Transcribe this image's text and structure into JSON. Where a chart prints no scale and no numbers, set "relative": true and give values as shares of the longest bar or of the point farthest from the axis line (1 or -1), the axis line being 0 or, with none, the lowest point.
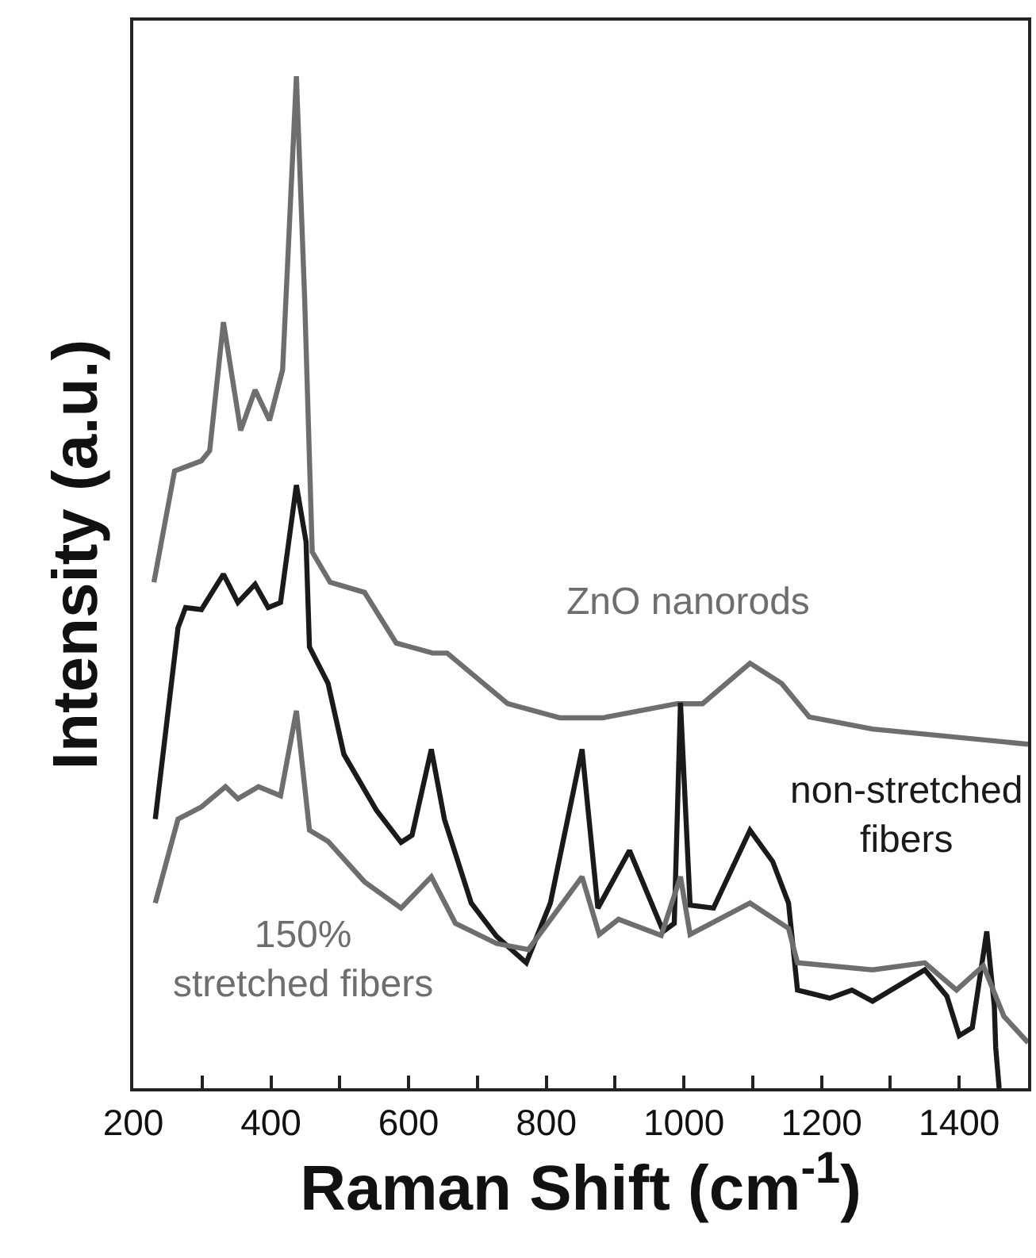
{
  "chart_data": {
    "type": "line",
    "relative": true,
    "xlabel": "Raman Shift (cm$^{-1}$)",
    "ylabel": "Intensity (a.u.)",
    "xlim": [
      200,
      1500
    ],
    "xticks": [
      200,
      {
        "value": 300,
        "label": null
      },
      400,
      {
        "value": 500,
        "label": null
      },
      600,
      {
        "value": 700,
        "label": null
      },
      800,
      {
        "value": 900,
        "label": null
      },
      1000,
      {
        "value": 1100,
        "label": null
      },
      1200,
      {
        "value": 1300,
        "label": null
      },
      1400
    ],
    "marker": "none",
    "line_style": "solid",
    "series": [
      {
        "color": "#6e6e6e",
        "x": [
          230,
          260,
          299,
          311,
          331,
          356,
          377,
          398,
          417,
          437,
          449,
          460,
          486,
          536,
          582,
          635,
          656,
          744,
          820,
          882,
          990,
          1027,
          1096,
          1142,
          1182,
          1274,
          1500
        ],
        "values": [
          0.5,
          0.61,
          0.62,
          0.63,
          0.757,
          0.65,
          0.69,
          0.66,
          0.71,
          1.0,
          0.78,
          0.53,
          0.5,
          0.49,
          0.44,
          0.43,
          0.43,
          0.38,
          0.366,
          0.366,
          0.38,
          0.38,
          0.42,
          0.4,
          0.367,
          0.355,
          0.34
        ]
      },
      {
        "color": "#1a1a1a",
        "x": [
          232,
          265,
          276,
          299,
          331,
          352,
          377,
          396,
          414,
          437,
          451,
          456,
          483,
          506,
          553,
          589,
          605,
          633,
          652,
          691,
          728,
          771,
          806,
          852,
          875,
          921,
          970,
          986,
          995,
          1009,
          1043,
          1096,
          1129,
          1152,
          1165,
          1212,
          1244,
          1274,
          1350,
          1382,
          1400,
          1419,
          1440,
          1451,
          1453,
          1458
        ],
        "values": [
          0.266,
          0.455,
          0.475,
          0.473,
          0.508,
          0.48,
          0.498,
          0.475,
          0.48,
          0.596,
          0.54,
          0.436,
          0.4,
          0.33,
          0.275,
          0.243,
          0.25,
          0.335,
          0.266,
          0.183,
          0.15,
          0.124,
          0.183,
          0.335,
          0.178,
          0.235,
          0.155,
          0.163,
          0.381,
          0.181,
          0.178,
          0.255,
          0.224,
          0.183,
          0.097,
          0.089,
          0.097,
          0.086,
          0.117,
          0.091,
          0.052,
          0.06,
          0.155,
          0.081,
          0.04,
          0.0
        ]
      },
      {
        "color": "#6e6e6e",
        "x": [
          232,
          265,
          299,
          334,
          352,
          382,
          414,
          437,
          456,
          483,
          536,
          589,
          633,
          668,
          728,
          774,
          852,
          877,
          905,
          967,
          995,
          1009,
          1096,
          1152,
          1165,
          1274,
          1350,
          1396,
          1435,
          1465,
          1500
        ],
        "values": [
          0.183,
          0.266,
          0.278,
          0.298,
          0.286,
          0.298,
          0.289,
          0.373,
          0.255,
          0.244,
          0.204,
          0.178,
          0.209,
          0.163,
          0.143,
          0.137,
          0.209,
          0.152,
          0.167,
          0.151,
          0.209,
          0.152,
          0.183,
          0.158,
          0.124,
          0.117,
          0.124,
          0.097,
          0.121,
          0.071,
          0.045
        ]
      }
    ],
    "annotations": [
      "ZnO nanorods",
      "non-stretched\nfibers",
      "150%\nstretched fibers"
    ]
  }
}
